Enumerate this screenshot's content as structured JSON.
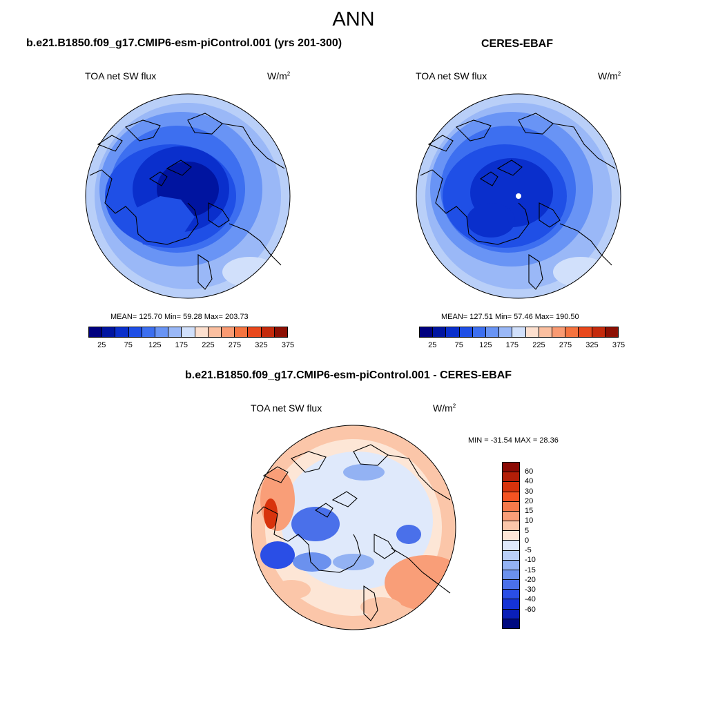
{
  "season": "ANN",
  "panels": [
    {
      "title": "b.e21.B1850.f09_g17.CMIP6-esm-piControl.001 (yrs 201-300)",
      "variable": "TOA net SW flux",
      "units_base": "W/m",
      "units_exp": "2",
      "stats": "MEAN= 125.70  Min=  59.28  Max= 203.73",
      "colorbar": {
        "colors": [
          "#00007f",
          "#0014a0",
          "#0a2fcc",
          "#1f4fe6",
          "#3d6ff0",
          "#6994f5",
          "#9ab8f7",
          "#d1e0fb",
          "#fde0cf",
          "#fbbfa0",
          "#f99a72",
          "#f5733f",
          "#e8481c",
          "#c42a0c",
          "#8c1004"
        ],
        "tick_labels": [
          "25",
          "75",
          "125",
          "175",
          "225",
          "275",
          "325",
          "375"
        ]
      }
    },
    {
      "title": "CERES-EBAF",
      "variable": "TOA net SW flux",
      "units_base": "W/m",
      "units_exp": "2",
      "stats": "MEAN= 127.51  Min=  57.46  Max= 190.50",
      "colorbar": {
        "colors": [
          "#00007f",
          "#0014a0",
          "#0a2fcc",
          "#1f4fe6",
          "#3d6ff0",
          "#6994f5",
          "#9ab8f7",
          "#d1e0fb",
          "#fde0cf",
          "#fbbfa0",
          "#f99a72",
          "#f5733f",
          "#e8481c",
          "#c42a0c",
          "#8c1004"
        ],
        "tick_labels": [
          "25",
          "75",
          "125",
          "175",
          "225",
          "275",
          "325",
          "375"
        ]
      }
    },
    {
      "title": "b.e21.B1850.f09_g17.CMIP6-esm-piControl.001 - CERES-EBAF",
      "variable": "TOA net SW flux",
      "units_base": "W/m",
      "units_exp": "2",
      "stats": "MIN = -31.54 MAX =  28.36",
      "colorbar": {
        "colors": [
          "#8c0a04",
          "#b31e08",
          "#d8330c",
          "#f55322",
          "#f7794a",
          "#f99e78",
          "#fbc6a9",
          "#fde6d6",
          "#dfe9fb",
          "#b9cff8",
          "#93b2f3",
          "#6b91ee",
          "#4a70ea",
          "#2a4ee6",
          "#1533d6",
          "#0a1fb8",
          "#000a80"
        ],
        "tick_labels": [
          "60",
          "40",
          "30",
          "20",
          "15",
          "10",
          "5",
          "0",
          "-5",
          "-10",
          "-15",
          "-20",
          "-30",
          "-40",
          "-60"
        ]
      }
    }
  ]
}
